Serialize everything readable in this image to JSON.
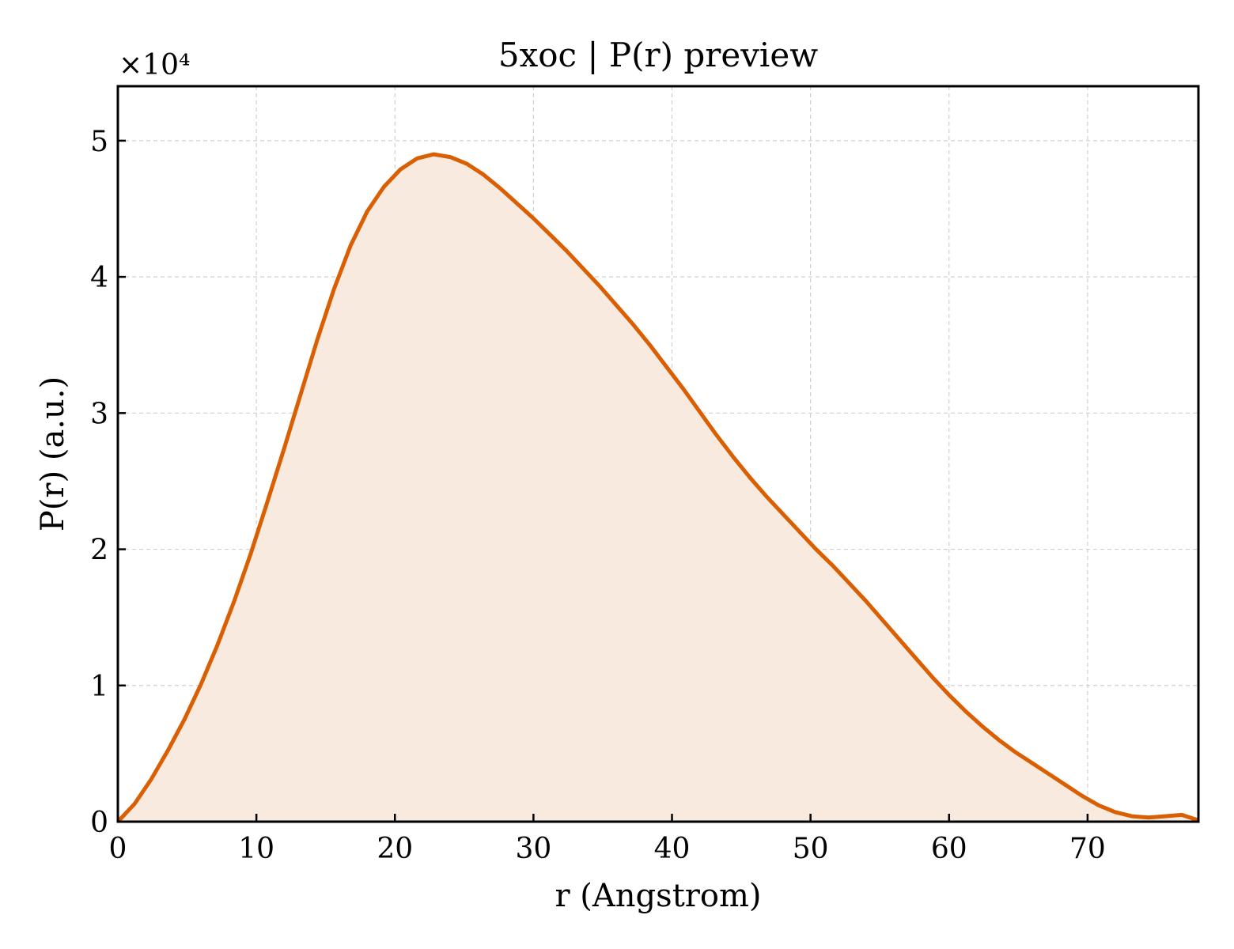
{
  "chart_data": {
    "type": "area",
    "title": "5xoc | P(r) preview",
    "xlabel": "r (Angstrom)",
    "ylabel": "P(r) (a.u.)",
    "y_multiplier": "×10⁴",
    "xlim": [
      0,
      78
    ],
    "ylim": [
      0,
      5.4
    ],
    "y_scale_factor": 10000,
    "grid": true,
    "x_ticks": [
      0,
      10,
      20,
      30,
      40,
      50,
      60,
      70
    ],
    "y_ticks": [
      0,
      1,
      2,
      3,
      4,
      5
    ],
    "line_color": "#d95f02",
    "fill_color": "#f9eadf",
    "series": [
      {
        "x": [
          0,
          1.2,
          2.4,
          3.6,
          4.8,
          6.0,
          7.2,
          8.4,
          9.6,
          10.8,
          12.0,
          13.2,
          14.4,
          15.6,
          16.8,
          18.0,
          19.2,
          20.4,
          21.6,
          22.8,
          24.0,
          25.2,
          26.4,
          27.6,
          28.8,
          30.0,
          31.2,
          32.4,
          33.6,
          34.8,
          36.0,
          37.2,
          38.4,
          39.6,
          40.8,
          42.0,
          43.2,
          44.4,
          45.6,
          46.8,
          48.0,
          49.2,
          50.4,
          51.6,
          52.8,
          54.0,
          55.2,
          56.4,
          57.6,
          58.8,
          60.0,
          61.2,
          62.4,
          63.6,
          64.8,
          66.0,
          67.2,
          68.4,
          69.6,
          70.8,
          72.0,
          73.2,
          74.4,
          75.6,
          76.8,
          78.0
        ],
        "y": [
          0.0,
          0.13,
          0.31,
          0.52,
          0.75,
          1.01,
          1.3,
          1.62,
          1.97,
          2.35,
          2.74,
          3.14,
          3.54,
          3.91,
          4.23,
          4.48,
          4.66,
          4.79,
          4.87,
          4.9,
          4.88,
          4.83,
          4.75,
          4.65,
          4.54,
          4.43,
          4.31,
          4.19,
          4.06,
          3.93,
          3.79,
          3.65,
          3.5,
          3.34,
          3.18,
          3.01,
          2.84,
          2.68,
          2.53,
          2.39,
          2.26,
          2.13,
          2.0,
          1.88,
          1.75,
          1.62,
          1.48,
          1.34,
          1.2,
          1.06,
          0.93,
          0.81,
          0.7,
          0.6,
          0.51,
          0.43,
          0.35,
          0.27,
          0.19,
          0.12,
          0.07,
          0.04,
          0.03,
          0.04,
          0.05,
          0.01
        ]
      }
    ]
  }
}
